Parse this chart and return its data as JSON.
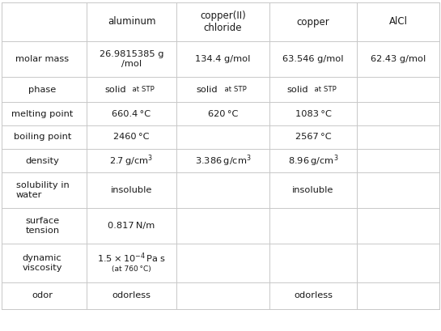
{
  "col_headers": [
    "",
    "aluminum",
    "copper(II)\nchloride",
    "copper",
    "AlCl"
  ],
  "row_labels": [
    "molar mass",
    "phase",
    "melting point",
    "boiling point",
    "density",
    "solubility in\nwater",
    "surface\ntension",
    "dynamic\nviscosity",
    "odor"
  ],
  "bg_color": "#ffffff",
  "text_color": "#1a1a1a",
  "line_color": "#c8c8c8",
  "header_fontsize": 8.5,
  "cell_fontsize": 8.2,
  "small_fontsize": 6.2
}
